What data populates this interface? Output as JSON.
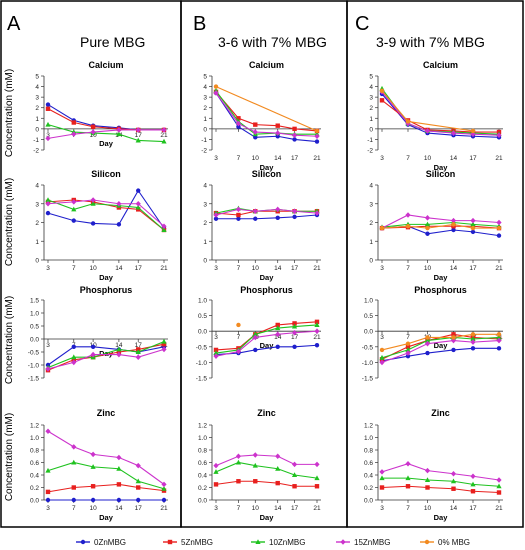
{
  "figure": {
    "panels": [
      {
        "letter": "A",
        "title": "Pure MBG"
      },
      {
        "letter": "B",
        "title": "3-6 with 7% MBG"
      },
      {
        "letter": "C",
        "title": "3-9 with 7% MBG"
      }
    ],
    "row_ylabel": "Concentration (mM)",
    "legend": [
      {
        "name": "0ZnMBG",
        "color": "#1f1fcc",
        "marker": "circle"
      },
      {
        "name": "5ZnMBG",
        "color": "#e8201e",
        "marker": "square"
      },
      {
        "name": "10ZnMBG",
        "color": "#1fc21f",
        "marker": "triangle"
      },
      {
        "name": "15ZnMBG",
        "color": "#cc33cc",
        "marker": "diamond"
      },
      {
        "name": "0% MBG",
        "color": "#f28a20",
        "marker": "circle"
      }
    ]
  },
  "chart_data": [
    {
      "type": "line",
      "panel": "A",
      "title": "Calcium",
      "xlabel": "Day",
      "ylabel": "Concentration (mM)",
      "x": [
        3,
        7,
        10,
        14,
        17,
        21
      ],
      "xticks": [
        "3",
        "7",
        "10",
        "14",
        "17",
        "21"
      ],
      "ylim": [
        -2,
        5
      ],
      "yticks": [
        "-2",
        "-1",
        "0",
        "1",
        "2",
        "3",
        "4",
        "5"
      ],
      "x_axis_at": 0,
      "tick_labels": "inline",
      "series": [
        {
          "name": "0ZnMBG",
          "values": [
            2.3,
            0.8,
            0.3,
            0.1,
            -0.1,
            -0.1
          ]
        },
        {
          "name": "5ZnMBG",
          "values": [
            1.9,
            0.6,
            0.2,
            0.0,
            -0.1,
            -0.1
          ]
        },
        {
          "name": "10ZnMBG",
          "values": [
            0.4,
            -0.3,
            -0.4,
            -0.5,
            -1.1,
            -1.2
          ]
        },
        {
          "name": "15ZnMBG",
          "values": [
            -0.9,
            -0.5,
            -0.3,
            -0.1,
            -0.1,
            -0.1
          ]
        }
      ]
    },
    {
      "type": "line",
      "panel": "A",
      "title": "Silicon",
      "xlabel": "Day",
      "ylabel": "Concentration (mM)",
      "x": [
        3,
        7,
        10,
        14,
        17,
        21
      ],
      "xticks": [
        "3",
        "7",
        "10",
        "14",
        "17",
        "21"
      ],
      "ylim": [
        0,
        4
      ],
      "yticks": [
        "0",
        "1",
        "2",
        "3",
        "4"
      ],
      "x_axis_at": 0,
      "tick_labels": "below",
      "series": [
        {
          "name": "0ZnMBG",
          "values": [
            2.5,
            2.1,
            1.95,
            1.9,
            3.7,
            1.7
          ]
        },
        {
          "name": "5ZnMBG",
          "values": [
            3.1,
            3.2,
            3.1,
            2.8,
            2.7,
            1.6
          ]
        },
        {
          "name": "10ZnMBG",
          "values": [
            3.2,
            2.7,
            3.0,
            2.9,
            2.8,
            1.6
          ]
        },
        {
          "name": "15ZnMBG",
          "values": [
            3.0,
            3.1,
            3.2,
            3.0,
            3.0,
            1.8
          ]
        }
      ]
    },
    {
      "type": "line",
      "panel": "A",
      "title": "Phosphorus",
      "xlabel": "Day",
      "ylabel": "Concentration (mM)",
      "x": [
        3,
        7,
        10,
        14,
        17,
        21
      ],
      "xticks": [
        "3",
        "7",
        "10",
        "14",
        "17",
        "21"
      ],
      "ylim": [
        -1.5,
        1.5
      ],
      "yticks": [
        "-1.5",
        "-1.0",
        "-0.5",
        "0.0",
        "0.5",
        "1.0",
        "1.5"
      ],
      "x_axis_at": 0,
      "tick_labels": "inline",
      "series": [
        {
          "name": "0ZnMBG",
          "values": [
            -1.0,
            -0.3,
            -0.3,
            -0.4,
            -0.5,
            -0.3
          ]
        },
        {
          "name": "5ZnMBG",
          "values": [
            -1.2,
            -0.8,
            -0.7,
            -0.5,
            -0.4,
            -0.2
          ]
        },
        {
          "name": "10ZnMBG",
          "values": [
            -1.1,
            -0.7,
            -0.7,
            -0.4,
            -0.5,
            -0.1
          ]
        },
        {
          "name": "15ZnMBG",
          "values": [
            -1.15,
            -0.9,
            -0.6,
            -0.6,
            -0.7,
            -0.4
          ]
        }
      ]
    },
    {
      "type": "line",
      "panel": "A",
      "title": "Zinc",
      "xlabel": "Day",
      "ylabel": "Concentration (mM)",
      "x": [
        3,
        7,
        10,
        14,
        17,
        21
      ],
      "xticks": [
        "3",
        "7",
        "10",
        "14",
        "17",
        "21"
      ],
      "ylim": [
        0,
        1.2
      ],
      "yticks": [
        "0.0",
        "0.2",
        "0.4",
        "0.6",
        "0.8",
        "1.0",
        "1.2"
      ],
      "x_axis_at": 0,
      "tick_labels": "below",
      "series": [
        {
          "name": "0ZnMBG",
          "values": [
            0.0,
            0.0,
            0.0,
            0.0,
            0.0,
            0.0
          ]
        },
        {
          "name": "5ZnMBG",
          "values": [
            0.13,
            0.2,
            0.22,
            0.25,
            0.2,
            0.15
          ]
        },
        {
          "name": "10ZnMBG",
          "values": [
            0.47,
            0.6,
            0.53,
            0.5,
            0.3,
            0.18
          ]
        },
        {
          "name": "15ZnMBG",
          "values": [
            1.1,
            0.85,
            0.73,
            0.68,
            0.55,
            0.25
          ]
        }
      ]
    },
    {
      "type": "line",
      "panel": "B",
      "title": "Calcium",
      "xlabel": "Day",
      "ylabel": "",
      "x": [
        3,
        7,
        10,
        14,
        17,
        21
      ],
      "xticks": [
        "3",
        "7",
        "10",
        "14",
        "17",
        "21"
      ],
      "ylim": [
        -2,
        5
      ],
      "yticks": [
        "-2",
        "-1",
        "0",
        "1",
        "2",
        "3",
        "4",
        "5"
      ],
      "x_axis_at": 0,
      "tick_labels": "below",
      "series": [
        {
          "name": "0ZnMBG",
          "values": [
            3.4,
            0.2,
            -0.8,
            -0.7,
            -1.0,
            -1.2
          ]
        },
        {
          "name": "5ZnMBG",
          "values": [
            3.5,
            1.0,
            0.4,
            0.3,
            0.0,
            -0.2
          ]
        },
        {
          "name": "10ZnMBG",
          "values": [
            3.6,
            0.7,
            -0.5,
            -0.4,
            -0.5,
            -0.5
          ]
        },
        {
          "name": "15ZnMBG",
          "values": [
            3.4,
            0.5,
            -0.3,
            -0.4,
            -0.6,
            -0.7
          ]
        },
        {
          "name": "0% MBG",
          "values": [
            4.0,
            null,
            null,
            null,
            null,
            -0.2
          ]
        }
      ]
    },
    {
      "type": "line",
      "panel": "B",
      "title": "Silicon",
      "xlabel": "Day",
      "ylabel": "",
      "x": [
        3,
        7,
        10,
        14,
        17,
        21
      ],
      "xticks": [
        "3",
        "7",
        "10",
        "14",
        "17",
        "21"
      ],
      "ylim": [
        0,
        4
      ],
      "yticks": [
        "0",
        "1",
        "2",
        "3",
        "4"
      ],
      "x_axis_at": 0,
      "tick_labels": "below",
      "series": [
        {
          "name": "0ZnMBG",
          "values": [
            2.2,
            2.2,
            2.2,
            2.25,
            2.3,
            2.4
          ]
        },
        {
          "name": "5ZnMBG",
          "values": [
            2.5,
            2.4,
            2.6,
            2.6,
            2.6,
            2.6
          ]
        },
        {
          "name": "10ZnMBG",
          "values": [
            2.5,
            2.75,
            2.6,
            2.7,
            2.6,
            2.6
          ]
        },
        {
          "name": "15ZnMBG",
          "values": [
            2.4,
            2.7,
            2.6,
            2.7,
            2.6,
            2.5
          ]
        }
      ]
    },
    {
      "type": "line",
      "panel": "B",
      "title": "Phosphorus",
      "xlabel": "Day",
      "ylabel": "",
      "x": [
        3,
        7,
        10,
        14,
        17,
        21
      ],
      "xticks": [
        "3",
        "7",
        "10",
        "14",
        "17",
        "21"
      ],
      "ylim": [
        -1.5,
        1.0
      ],
      "yticks": [
        "-1.5",
        "-1.0",
        "-0.5",
        "0.0",
        "0.5",
        "1.0"
      ],
      "x_axis_at": 0,
      "tick_labels": "inline",
      "series": [
        {
          "name": "0ZnMBG",
          "values": [
            -0.75,
            -0.7,
            -0.6,
            -0.5,
            -0.5,
            -0.45
          ]
        },
        {
          "name": "5ZnMBG",
          "values": [
            -0.6,
            -0.55,
            -0.1,
            0.2,
            0.25,
            0.3
          ]
        },
        {
          "name": "10ZnMBG",
          "values": [
            -0.7,
            -0.6,
            -0.1,
            0.1,
            0.15,
            0.2
          ]
        },
        {
          "name": "15ZnMBG",
          "values": [
            -0.8,
            -0.65,
            -0.2,
            -0.1,
            -0.05,
            0.0
          ]
        },
        {
          "name": "0% MBG",
          "values": [
            null,
            0.2,
            null,
            null,
            null,
            null
          ]
        }
      ]
    },
    {
      "type": "line",
      "panel": "B",
      "title": "Zinc",
      "xlabel": "Day",
      "ylabel": "",
      "x": [
        3,
        7,
        10,
        14,
        17,
        21
      ],
      "xticks": [
        "3",
        "7",
        "10",
        "14",
        "17",
        "21"
      ],
      "ylim": [
        0,
        1.2
      ],
      "yticks": [
        "0.0",
        "0.2",
        "0.4",
        "0.6",
        "0.8",
        "1.0",
        "1.2"
      ],
      "x_axis_at": 0,
      "tick_labels": "below",
      "series": [
        {
          "name": "5ZnMBG",
          "values": [
            0.25,
            0.3,
            0.3,
            0.27,
            0.22,
            0.22
          ]
        },
        {
          "name": "10ZnMBG",
          "values": [
            0.45,
            0.6,
            0.55,
            0.5,
            0.4,
            0.35
          ]
        },
        {
          "name": "15ZnMBG",
          "values": [
            0.55,
            0.7,
            0.72,
            0.7,
            0.57,
            0.57
          ]
        }
      ]
    },
    {
      "type": "line",
      "panel": "C",
      "title": "Calcium",
      "xlabel": "Day",
      "ylabel": "",
      "x": [
        3,
        7,
        10,
        14,
        17,
        21
      ],
      "xticks": [
        "3",
        "7",
        "10",
        "14",
        "17",
        "21"
      ],
      "ylim": [
        -2,
        5
      ],
      "yticks": [
        "-2",
        "-1",
        "0",
        "1",
        "2",
        "3",
        "4",
        "5"
      ],
      "x_axis_at": 0,
      "tick_labels": "below",
      "series": [
        {
          "name": "0ZnMBG",
          "values": [
            3.3,
            0.4,
            -0.4,
            -0.6,
            -0.7,
            -0.8
          ]
        },
        {
          "name": "5ZnMBG",
          "values": [
            2.7,
            0.8,
            -0.1,
            -0.2,
            -0.3,
            -0.3
          ]
        },
        {
          "name": "10ZnMBG",
          "values": [
            3.8,
            0.5,
            -0.2,
            -0.3,
            -0.4,
            -0.5
          ]
        },
        {
          "name": "15ZnMBG",
          "values": [
            3.5,
            0.5,
            -0.2,
            -0.4,
            -0.5,
            -0.6
          ]
        },
        {
          "name": "0% MBG",
          "values": [
            3.6,
            0.7,
            null,
            null,
            -0.2,
            null
          ]
        }
      ]
    },
    {
      "type": "line",
      "panel": "C",
      "title": "Silicon",
      "xlabel": "Day",
      "ylabel": "",
      "x": [
        3,
        7,
        10,
        14,
        17,
        21
      ],
      "xticks": [
        "3",
        "7",
        "10",
        "14",
        "17",
        "21"
      ],
      "ylim": [
        0,
        4
      ],
      "yticks": [
        "0",
        "1",
        "2",
        "3",
        "4"
      ],
      "x_axis_at": 0,
      "tick_labels": "below",
      "series": [
        {
          "name": "0ZnMBG",
          "values": [
            1.7,
            1.8,
            1.4,
            1.6,
            1.5,
            1.3
          ]
        },
        {
          "name": "5ZnMBG",
          "values": [
            1.7,
            1.75,
            1.8,
            1.8,
            1.8,
            1.7
          ]
        },
        {
          "name": "10ZnMBG",
          "values": [
            1.75,
            1.9,
            1.9,
            2.0,
            1.9,
            1.8
          ]
        },
        {
          "name": "15ZnMBG",
          "values": [
            1.7,
            2.4,
            2.25,
            2.1,
            2.1,
            2.0
          ]
        },
        {
          "name": "0% MBG",
          "values": [
            1.7,
            1.8,
            1.7,
            1.9,
            1.7,
            1.7
          ]
        }
      ]
    },
    {
      "type": "line",
      "panel": "C",
      "title": "Phosphorus",
      "xlabel": "Day",
      "ylabel": "",
      "x": [
        3,
        7,
        10,
        14,
        17,
        21
      ],
      "xticks": [
        "3",
        "7",
        "10",
        "14",
        "17",
        "21"
      ],
      "ylim": [
        -1.5,
        1.0
      ],
      "yticks": [
        "-1.5",
        "-1.0",
        "-0.5",
        "0.0",
        "0.5",
        "1.0"
      ],
      "x_axis_at": 0,
      "tick_labels": "inline",
      "series": [
        {
          "name": "0ZnMBG",
          "values": [
            -0.95,
            -0.8,
            -0.7,
            -0.6,
            -0.55,
            -0.55
          ]
        },
        {
          "name": "5ZnMBG",
          "values": [
            -0.9,
            -0.5,
            -0.3,
            -0.1,
            -0.2,
            -0.25
          ]
        },
        {
          "name": "10ZnMBG",
          "values": [
            -0.85,
            -0.6,
            -0.3,
            -0.2,
            -0.25,
            -0.2
          ]
        },
        {
          "name": "15ZnMBG",
          "values": [
            -1.0,
            -0.7,
            -0.4,
            -0.3,
            -0.35,
            -0.3
          ]
        },
        {
          "name": "0% MBG",
          "values": [
            -0.6,
            -0.4,
            -0.2,
            -0.2,
            -0.1,
            -0.1
          ]
        }
      ]
    },
    {
      "type": "line",
      "panel": "C",
      "title": "Zinc",
      "xlabel": "Day",
      "ylabel": "",
      "x": [
        3,
        7,
        10,
        14,
        17,
        21
      ],
      "xticks": [
        "3",
        "7",
        "10",
        "14",
        "17",
        "21"
      ],
      "ylim": [
        0,
        1.2
      ],
      "yticks": [
        "0.0",
        "0.2",
        "0.4",
        "0.6",
        "0.8",
        "1.0",
        "1.2"
      ],
      "x_axis_at": 0,
      "tick_labels": "below",
      "series": [
        {
          "name": "5ZnMBG",
          "values": [
            0.2,
            0.22,
            0.2,
            0.18,
            0.14,
            0.12
          ]
        },
        {
          "name": "10ZnMBG",
          "values": [
            0.35,
            0.35,
            0.32,
            0.3,
            0.25,
            0.22
          ]
        },
        {
          "name": "15ZnMBG",
          "values": [
            0.45,
            0.58,
            0.47,
            0.42,
            0.38,
            0.32
          ]
        }
      ]
    }
  ]
}
